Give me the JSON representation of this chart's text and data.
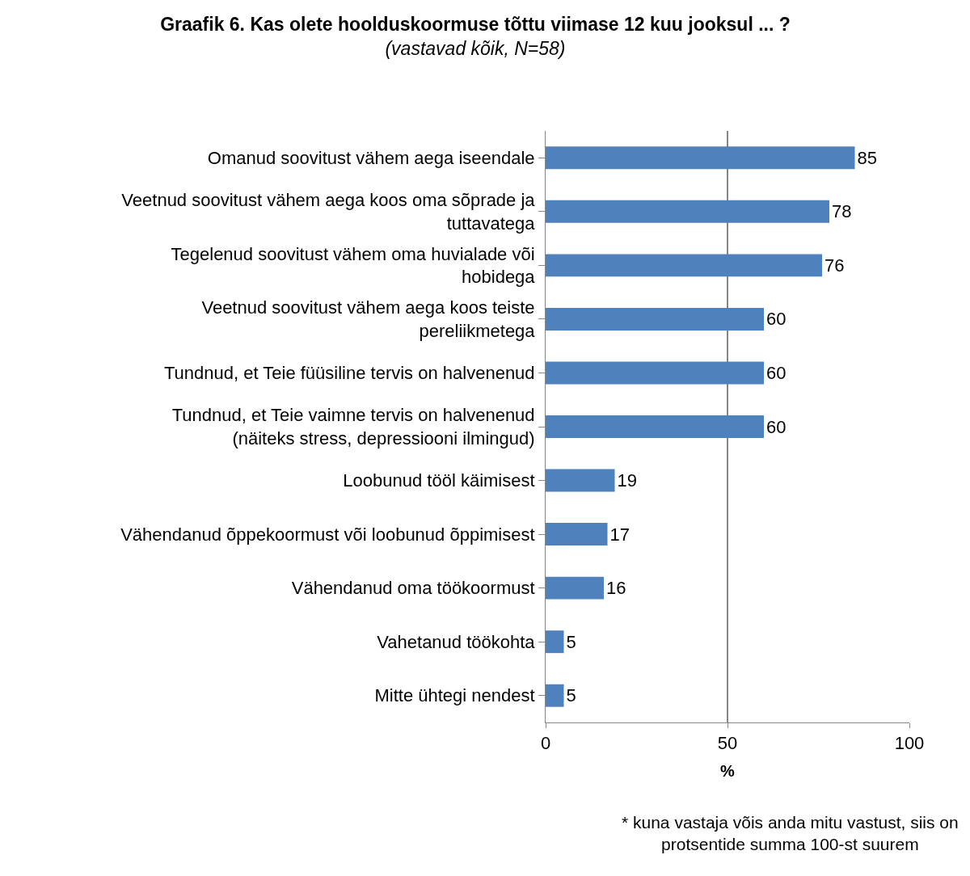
{
  "chart_data": {
    "type": "bar",
    "orientation": "horizontal",
    "title": "Graafik 6. Kas olete hoolduskoormuse tõttu viimase 12 kuu jooksul ... ?",
    "subtitle": "(vastavad kõik, N=58)",
    "xlabel": "%",
    "categories": [
      "Omanud soovitust vähem aega iseendale",
      "Veetnud soovitust vähem aega koos oma sõprade ja tuttavatega",
      "Tegelenud soovitust vähem oma huvialade või hobidega",
      "Veetnud soovitust vähem aega koos teiste pereliikmetega",
      "Tundnud, et Teie füüsiline tervis on halvenenud",
      "Tundnud, et Teie vaimne tervis on halvenenud (näiteks stress, depressiooni ilmingud)",
      "Loobunud tööl käimisest",
      "Vähendanud õppekoormust või loobunud õppimisest",
      "Vähendanud oma töökoormust",
      "Vahetanud töökohta",
      "Mitte ühtegi nendest"
    ],
    "values": [
      85,
      78,
      76,
      60,
      60,
      60,
      19,
      17,
      16,
      5,
      5
    ],
    "color": "#4f81bd",
    "data_labels": true,
    "xlim": [
      0,
      100
    ],
    "xticks": [
      0,
      50,
      100
    ],
    "grid": "x",
    "annotations": [
      "* kuna vastaja võis anda mitu vastust, siis on protsentide summa 100-st suurem"
    ]
  }
}
